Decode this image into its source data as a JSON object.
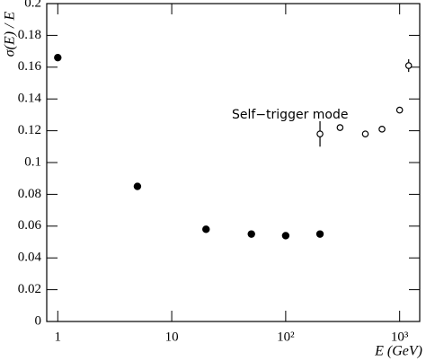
{
  "chart_data": {
    "type": "scatter",
    "y_label": "σ(E) / E",
    "x_label": "E (GeV)",
    "annotation": "Self−trigger mode",
    "xlog": true,
    "xlim": [
      0.8,
      1500
    ],
    "xticks": [
      1,
      10,
      {
        "value": 100,
        "label": "10²"
      },
      {
        "value": 1000,
        "label": "10³"
      }
    ],
    "ylim": [
      0,
      0.2
    ],
    "yticks": [
      0,
      0.02,
      0.04,
      0.06,
      0.08,
      0.1,
      0.12,
      0.14,
      0.16,
      0.18,
      0.2
    ],
    "series": [
      {
        "color": "#000000",
        "marker": "filled",
        "x": [
          1,
          5,
          20,
          50,
          100,
          200
        ],
        "values": [
          0.166,
          0.085,
          0.058,
          0.055,
          0.054,
          0.055
        ]
      },
      {
        "color": "#000000",
        "marker": "open",
        "x": [
          200,
          300,
          500,
          700,
          1000,
          1200
        ],
        "values": [
          0.118,
          0.122,
          0.118,
          0.121,
          0.133,
          0.161
        ],
        "errors": [
          0.008,
          0.002,
          0.002,
          0.002,
          0.002,
          0.004
        ]
      }
    ]
  }
}
